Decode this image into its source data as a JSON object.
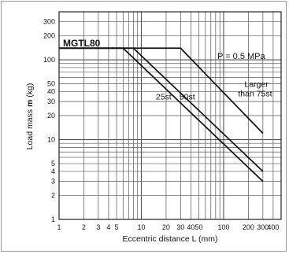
{
  "chart_data": {
    "type": "line",
    "model_label": "MGTL80",
    "pressure_label": "P = 0.5 MPa",
    "xlabel": "Eccentric distance L (mm)",
    "ylabel_prefix": "Load mass ",
    "ylabel_symbol": "m",
    "ylabel_suffix": " (kg)",
    "x_scale": "log",
    "y_scale": "log",
    "xlim": [
      1,
      500
    ],
    "ylim": [
      1,
      400
    ],
    "grid": true,
    "x_ticks": [
      1,
      2,
      3,
      4,
      5,
      10,
      20,
      30,
      40,
      50,
      100,
      200,
      300,
      400
    ],
    "x_tick_labels": [
      "1",
      "2",
      "3",
      "4",
      "5",
      "10",
      "20",
      "30",
      "40",
      "50",
      "100",
      "200",
      "300",
      "400"
    ],
    "y_ticks": [
      1,
      2,
      3,
      4,
      5,
      10,
      20,
      30,
      40,
      50,
      100,
      200,
      300
    ],
    "y_tick_labels": [
      "1",
      "2",
      "3",
      "4",
      "5",
      "10",
      "20",
      "30",
      "40",
      "50",
      "100",
      "200",
      "300"
    ],
    "series": [
      {
        "name": "25st",
        "x": [
          1,
          6,
          300
        ],
        "y": [
          140,
          140,
          3
        ]
      },
      {
        "name": "50st",
        "x": [
          1,
          8,
          300
        ],
        "y": [
          140,
          140,
          4
        ]
      },
      {
        "name": "Larger than 75st",
        "x": [
          1,
          30,
          300
        ],
        "y": [
          140,
          140,
          12
        ]
      }
    ],
    "series_label_lines": [
      [
        "25st"
      ],
      [
        "50st"
      ],
      [
        "Larger",
        "than 75st"
      ]
    ],
    "line_color": "#111111",
    "grid_color": "#555555"
  }
}
